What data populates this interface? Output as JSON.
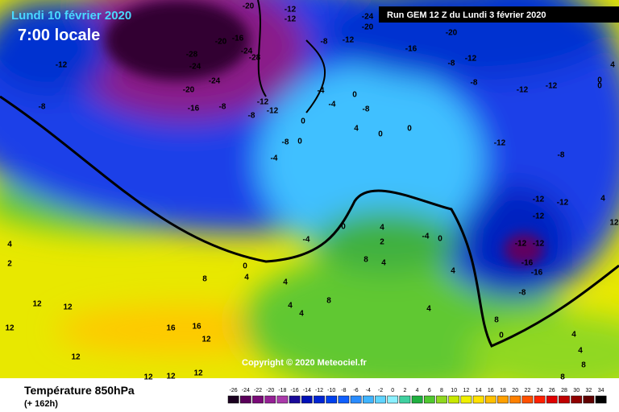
{
  "header": {
    "title": "Lundi 10 février 2020",
    "time": "7:00 locale",
    "run": "Run GEM 12 Z du Lundi 3 février 2020",
    "copyright": "Copyright © 2020 Meteociel.fr"
  },
  "footer": {
    "field": "Température 850hPa",
    "lead": "(+ 162h)"
  },
  "legend": {
    "values": [
      -26,
      -24,
      -22,
      -20,
      -18,
      -16,
      -14,
      -12,
      -10,
      -8,
      -6,
      -4,
      -2,
      0,
      2,
      4,
      6,
      8,
      10,
      12,
      14,
      16,
      18,
      20,
      22,
      24,
      26,
      28,
      30,
      32,
      34
    ],
    "colors": [
      "#1a0020",
      "#5a005a",
      "#7a0a78",
      "#952095",
      "#aa3aaa",
      "#1a0a9a",
      "#0010b8",
      "#0024d4",
      "#0040ee",
      "#1060ff",
      "#2a8cff",
      "#40b4ff",
      "#60d4ff",
      "#8af0ff",
      "#40d0a0",
      "#20b040",
      "#50c830",
      "#90d820",
      "#c8e800",
      "#f0f000",
      "#ffe000",
      "#ffc000",
      "#ffa000",
      "#ff8000",
      "#ff5000",
      "#ff2000",
      "#e00000",
      "#c00000",
      "#900000",
      "#600000",
      "#000000"
    ]
  },
  "contour_labels": [
    "-20",
    "-12",
    "-12",
    "-24",
    "-20",
    "-20",
    "-28",
    "-24",
    "-20",
    "-16",
    "-24",
    "-28",
    "-24",
    "-20",
    "-16",
    "-8",
    "-12",
    "-12",
    "-8",
    "-12",
    "-8",
    "-8",
    "-12",
    "-16",
    "-12",
    "-8",
    "-8",
    "-4",
    "-4",
    "0",
    "-8",
    "-12",
    "-12",
    "-12",
    "-8",
    "-12",
    "-12",
    "-12",
    "-12",
    "-12",
    "-16",
    "-16",
    "-8",
    "-8",
    "-4",
    "0",
    "0",
    "4",
    "0",
    "0",
    "0",
    "-4",
    "4",
    "2",
    "8",
    "4",
    "0",
    "-4",
    "0",
    "4",
    "8",
    "4",
    "2",
    "4",
    "12",
    "12",
    "12",
    "16",
    "16",
    "12",
    "12",
    "12",
    "12",
    "12",
    "4",
    "4",
    "8",
    "4",
    "4",
    "8",
    "0",
    "4",
    "4",
    "8",
    "8",
    "12",
    "4",
    "0",
    "0",
    "4"
  ]
}
